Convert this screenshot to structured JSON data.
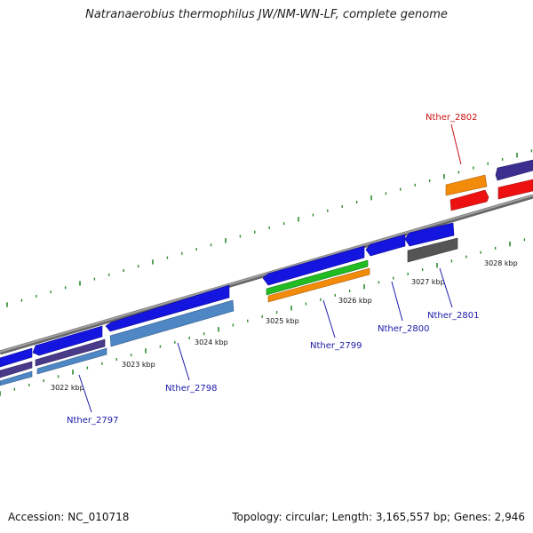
{
  "title": "Natranaerobius thermophilus JW/NM-WN-LF, complete genome",
  "footer": {
    "accession": "Accession: NC_010718",
    "stats": "Topology: circular; Length: 3,165,557 bp; Genes: 2,946"
  },
  "colors": {
    "backbone": "#8a8a8a",
    "tick": "#2e8b2e",
    "label": "#1a1aaa",
    "highlight": "#cc1111"
  },
  "kbp_labels": [
    {
      "text": "3022 kbp"
    },
    {
      "text": "3023 kbp"
    },
    {
      "text": "3024 kbp"
    },
    {
      "text": "3025 kbp"
    },
    {
      "text": "3026 kbp"
    },
    {
      "text": "3027 kbp"
    },
    {
      "text": "3028 kbp"
    }
  ],
  "gene_labels": [
    {
      "text": "Nther_2797",
      "color": "#1a1aaa"
    },
    {
      "text": "Nther_2798",
      "color": "#1a1aaa"
    },
    {
      "text": "Nther_2799",
      "color": "#1a1aaa"
    },
    {
      "text": "Nther_2800",
      "color": "#1a1aaa"
    },
    {
      "text": "Nther_2801",
      "color": "#1a1aaa"
    },
    {
      "text": "Nther_2802",
      "color": "#cc1111"
    }
  ]
}
